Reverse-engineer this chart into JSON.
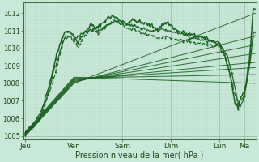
{
  "background_color": "#c8e8d8",
  "grid_color_major": "#9abfaa",
  "grid_color_minor": "#b8d8c8",
  "line_color": "#1a6020",
  "xlabel": "Pression niveau de la mer( hPa )",
  "ylim": [
    1004.8,
    1012.6
  ],
  "yticks": [
    1005,
    1006,
    1007,
    1008,
    1009,
    1010,
    1011,
    1012
  ],
  "day_labels": [
    "Jeu",
    "Ven",
    "Sam",
    "Dim",
    "Lun",
    "Ma"
  ],
  "day_positions": [
    0,
    48,
    96,
    144,
    192,
    216
  ],
  "num_steps": 228,
  "xlabel_fontsize": 7,
  "ytick_fontsize": 6,
  "xtick_fontsize": 6.5
}
